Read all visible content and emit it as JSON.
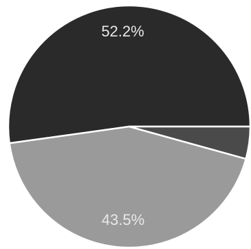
{
  "chart_data": {
    "type": "pie",
    "slices": [
      {
        "value": 52.2,
        "label": "52.2%",
        "color": "#2a2a2a"
      },
      {
        "value": 43.5,
        "label": "43.5%",
        "color": "#9a9a9a"
      },
      {
        "value": 4.3,
        "label": "",
        "color": "#4a4a4a"
      }
    ],
    "legend": "none",
    "slice_border_color": "#ffffff"
  }
}
